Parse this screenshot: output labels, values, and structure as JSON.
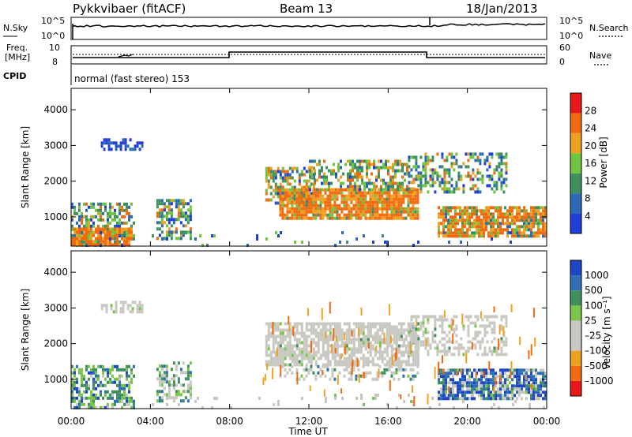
{
  "header": {
    "station": "Pykkvibaer (fitACF)",
    "beam": "Beam 13",
    "date": "18/Jan/2013"
  },
  "noise_panel": {
    "left_label": "N.Sky",
    "left_ticks": [
      "10^5",
      "10^0"
    ],
    "right_label": "N.Search",
    "right_ticks": [
      "10^5",
      "10^0"
    ]
  },
  "freq_panel": {
    "left_label_line1": "Freq.",
    "left_label_line2": "[MHz]",
    "left_ticks": [
      "10",
      "8"
    ],
    "right_label": "Nave",
    "right_ticks": [
      "60",
      "0"
    ],
    "cpid_label": "CPID",
    "cpid_text": "normal (fast stereo) 153"
  },
  "chart_data": [
    {
      "type": "heatmap",
      "name": "power",
      "ylabel": "Slant Range [km]",
      "ylim": [
        180,
        4600
      ],
      "y_ticks": [
        "1000",
        "2000",
        "3000",
        "4000"
      ],
      "colorbar_label": "Power [dB]",
      "colorbar_ticks": [
        "4",
        "8",
        "12",
        "16",
        "20",
        "24",
        "28"
      ],
      "colors": [
        "#1f3fd8",
        "#2b6ab8",
        "#3f8f5f",
        "#6fc53f",
        "#f0a020",
        "#f06a10",
        "#e81818"
      ]
    },
    {
      "type": "heatmap",
      "name": "velocity",
      "ylabel": "Slant Range [km]",
      "ylim": [
        180,
        4600
      ],
      "y_ticks": [
        "1000",
        "2000",
        "3000",
        "4000"
      ],
      "colorbar_label": "Velocity [m s⁻¹]",
      "colorbar_ticks": [
        "1000",
        "500",
        "100",
        "25",
        "–25",
        "–100",
        "–500",
        "–1000"
      ],
      "colors": [
        "#2046c8",
        "#2f6fb5",
        "#3f8f5f",
        "#7ac64a",
        "#c8c8c0",
        "#c8c8c0",
        "#f0a020",
        "#f06a10",
        "#e81818"
      ]
    }
  ],
  "x_axis": {
    "ticks": [
      "00:00",
      "04:00",
      "08:00",
      "12:00",
      "16:00",
      "20:00",
      "00:00"
    ],
    "xlabel": "Time UT"
  }
}
